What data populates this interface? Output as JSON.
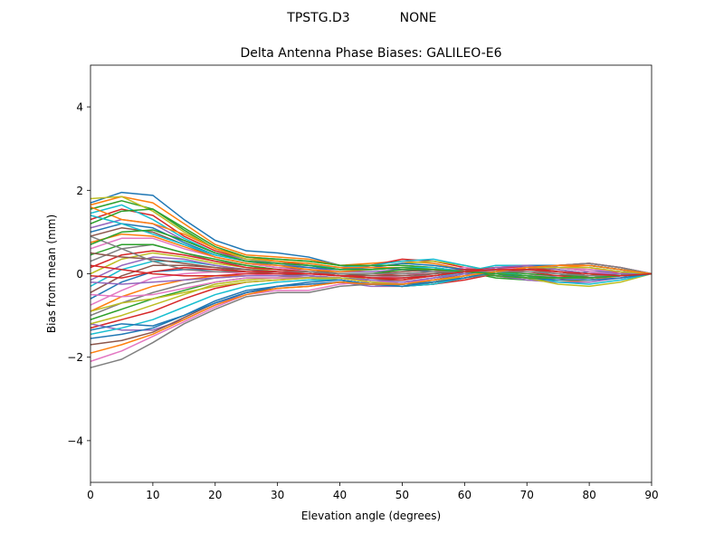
{
  "header": {
    "antenna": "TPSTG.D3",
    "radome": "NONE"
  },
  "chart_data": {
    "type": "line",
    "title": "Delta Antenna Phase Biases: GALILEO-E6",
    "xlabel": "Elevation angle (degrees)",
    "ylabel": "Bias from mean (mm)",
    "xlim": [
      0,
      90
    ],
    "ylim": [
      -5,
      5
    ],
    "xticks": [
      0,
      10,
      20,
      30,
      40,
      50,
      60,
      70,
      80,
      90
    ],
    "yticks": [
      -4,
      -2,
      0,
      2,
      4
    ],
    "xtick_labels": [
      "0",
      "10",
      "20",
      "30",
      "40",
      "50",
      "60",
      "70",
      "80",
      "90"
    ],
    "ytick_labels": [
      "−4",
      "−2",
      "0",
      "2",
      "4"
    ],
    "grid": false,
    "legend": "none",
    "colors": [
      "#1f77b4",
      "#ff7f0e",
      "#2ca02c",
      "#d62728",
      "#9467bd",
      "#8c564b",
      "#e377c2",
      "#7f7f7f",
      "#bcbd22",
      "#17becf"
    ],
    "x": [
      0,
      5,
      10,
      15,
      20,
      25,
      30,
      35,
      40,
      45,
      50,
      55,
      60,
      65,
      70,
      75,
      80,
      85,
      90
    ],
    "series": [
      {
        "values": [
          1.7,
          1.95,
          1.88,
          1.3,
          0.8,
          0.55,
          0.5,
          0.4,
          0.2,
          0.15,
          0.1,
          0.05,
          0.0,
          -0.05,
          -0.1,
          -0.05,
          0.05,
          0.05,
          0.0
        ]
      },
      {
        "values": [
          1.65,
          1.85,
          1.7,
          1.2,
          0.7,
          0.45,
          0.4,
          0.35,
          0.2,
          0.25,
          0.3,
          0.25,
          0.1,
          -0.05,
          -0.15,
          -0.2,
          -0.15,
          -0.05,
          0.0
        ]
      },
      {
        "values": [
          1.55,
          1.75,
          1.55,
          1.05,
          0.6,
          0.4,
          0.35,
          0.3,
          0.2,
          0.2,
          0.2,
          0.15,
          0.05,
          -0.1,
          -0.15,
          -0.15,
          -0.1,
          -0.05,
          0.0
        ]
      },
      {
        "values": [
          1.3,
          1.55,
          1.4,
          0.9,
          0.55,
          0.35,
          0.3,
          0.2,
          0.1,
          0.2,
          0.35,
          0.3,
          0.15,
          0.0,
          -0.1,
          -0.15,
          -0.05,
          0.05,
          0.0
        ]
      },
      {
        "values": [
          1.1,
          1.3,
          1.2,
          0.8,
          0.5,
          0.35,
          0.25,
          0.15,
          0.05,
          0.05,
          0.1,
          0.1,
          0.05,
          -0.05,
          -0.15,
          -0.2,
          -0.2,
          -0.1,
          0.0
        ]
      },
      {
        "values": [
          0.9,
          1.1,
          1.0,
          0.7,
          0.4,
          0.25,
          0.15,
          0.1,
          0.0,
          0.0,
          0.05,
          0.1,
          0.1,
          0.05,
          -0.05,
          -0.1,
          -0.1,
          -0.05,
          0.0
        ]
      },
      {
        "values": [
          0.6,
          0.85,
          0.85,
          0.6,
          0.4,
          0.25,
          0.15,
          0.05,
          -0.05,
          -0.1,
          -0.05,
          0.05,
          0.15,
          0.1,
          0.0,
          -0.1,
          -0.15,
          -0.1,
          0.0
        ]
      },
      {
        "values": [
          0.3,
          0.6,
          0.7,
          0.5,
          0.3,
          0.2,
          0.1,
          0.05,
          -0.05,
          -0.1,
          -0.1,
          0.0,
          0.1,
          0.15,
          0.1,
          0.0,
          -0.1,
          -0.05,
          0.0
        ]
      },
      {
        "values": [
          0.0,
          0.35,
          0.5,
          0.4,
          0.25,
          0.15,
          0.05,
          0.0,
          -0.05,
          -0.15,
          -0.15,
          -0.05,
          0.05,
          0.15,
          0.15,
          0.05,
          -0.05,
          -0.05,
          0.0
        ]
      },
      {
        "values": [
          -0.3,
          0.1,
          0.3,
          0.3,
          0.2,
          0.1,
          0.05,
          -0.05,
          -0.1,
          -0.15,
          -0.2,
          -0.1,
          0.05,
          0.2,
          0.2,
          0.1,
          0.0,
          -0.05,
          0.0
        ]
      },
      {
        "values": [
          -0.6,
          -0.2,
          0.05,
          0.1,
          0.1,
          0.05,
          0.0,
          -0.05,
          -0.1,
          -0.2,
          -0.25,
          -0.15,
          0.0,
          0.15,
          0.2,
          0.15,
          0.05,
          0.0,
          0.0
        ]
      },
      {
        "values": [
          -0.9,
          -0.55,
          -0.3,
          -0.15,
          -0.05,
          -0.05,
          -0.05,
          -0.1,
          -0.1,
          -0.2,
          -0.25,
          -0.2,
          -0.05,
          0.1,
          0.2,
          0.2,
          0.15,
          0.05,
          0.0
        ]
      },
      {
        "values": [
          -1.1,
          -0.85,
          -0.6,
          -0.4,
          -0.2,
          -0.1,
          -0.1,
          -0.1,
          -0.15,
          -0.25,
          -0.3,
          -0.25,
          -0.1,
          0.05,
          0.15,
          0.2,
          0.2,
          0.1,
          0.0
        ]
      },
      {
        "values": [
          -1.3,
          -1.1,
          -0.9,
          -0.6,
          -0.35,
          -0.2,
          -0.15,
          -0.1,
          -0.15,
          -0.25,
          -0.3,
          -0.25,
          -0.15,
          0.0,
          0.1,
          0.2,
          0.25,
          0.15,
          0.0
        ]
      },
      {
        "values": [
          -1.2,
          -1.35,
          -1.35,
          -1.1,
          -0.75,
          -0.45,
          -0.3,
          -0.25,
          -0.2,
          -0.3,
          -0.3,
          -0.2,
          -0.05,
          0.1,
          0.2,
          0.2,
          0.2,
          0.1,
          0.0
        ]
      },
      {
        "values": [
          -1.7,
          -1.6,
          -1.4,
          -1.05,
          -0.7,
          -0.45,
          -0.35,
          -0.3,
          -0.2,
          -0.25,
          -0.25,
          -0.2,
          -0.1,
          0.05,
          0.15,
          0.2,
          0.25,
          0.15,
          0.0
        ]
      },
      {
        "values": [
          -2.1,
          -1.85,
          -1.5,
          -1.15,
          -0.8,
          -0.5,
          -0.4,
          -0.4,
          -0.25,
          -0.2,
          -0.2,
          -0.15,
          -0.05,
          0.05,
          0.1,
          0.2,
          0.25,
          0.15,
          0.0
        ]
      },
      {
        "values": [
          -2.25,
          -2.05,
          -1.65,
          -1.2,
          -0.85,
          -0.55,
          -0.45,
          -0.45,
          -0.3,
          -0.25,
          -0.25,
          -0.2,
          -0.1,
          0.0,
          0.1,
          0.2,
          0.25,
          0.15,
          0.0
        ]
      },
      {
        "values": [
          1.8,
          1.85,
          1.5,
          1.0,
          0.6,
          0.35,
          0.3,
          0.25,
          0.15,
          0.15,
          0.25,
          0.3,
          0.2,
          0.05,
          -0.1,
          -0.25,
          -0.3,
          -0.2,
          0.0
        ]
      },
      {
        "values": [
          1.45,
          1.65,
          1.3,
          0.85,
          0.5,
          0.3,
          0.25,
          0.2,
          0.15,
          0.2,
          0.3,
          0.35,
          0.2,
          0.05,
          -0.05,
          -0.2,
          -0.25,
          -0.15,
          0.0
        ]
      },
      {
        "values": [
          1.0,
          1.2,
          1.1,
          0.75,
          0.45,
          0.3,
          0.2,
          0.15,
          0.1,
          0.15,
          0.25,
          0.2,
          0.1,
          0.0,
          -0.1,
          -0.15,
          -0.15,
          -0.1,
          0.0
        ]
      },
      {
        "values": [
          0.75,
          0.95,
          0.9,
          0.65,
          0.4,
          0.25,
          0.2,
          0.1,
          0.05,
          0.1,
          0.15,
          0.15,
          0.05,
          0.0,
          -0.05,
          -0.1,
          -0.1,
          -0.05,
          0.0
        ]
      },
      {
        "values": [
          0.45,
          0.7,
          0.7,
          0.5,
          0.35,
          0.2,
          0.1,
          0.05,
          0.0,
          0.0,
          0.1,
          0.1,
          0.05,
          0.05,
          0.0,
          -0.05,
          -0.05,
          -0.05,
          0.0
        ]
      },
      {
        "values": [
          0.15,
          0.45,
          0.55,
          0.45,
          0.3,
          0.15,
          0.1,
          0.05,
          -0.05,
          -0.05,
          0.0,
          0.05,
          0.1,
          0.1,
          0.05,
          -0.05,
          -0.1,
          -0.05,
          0.0
        ]
      },
      {
        "values": [
          -0.15,
          0.2,
          0.4,
          0.35,
          0.2,
          0.1,
          0.05,
          0.0,
          -0.05,
          -0.1,
          -0.1,
          -0.05,
          0.05,
          0.15,
          0.15,
          0.05,
          -0.05,
          -0.05,
          0.0
        ]
      },
      {
        "values": [
          -0.45,
          -0.05,
          0.2,
          0.2,
          0.15,
          0.05,
          0.0,
          -0.05,
          -0.1,
          -0.15,
          -0.15,
          -0.05,
          0.05,
          0.15,
          0.15,
          0.1,
          0.0,
          0.0,
          0.0
        ]
      },
      {
        "values": [
          -0.75,
          -0.4,
          -0.1,
          0.0,
          0.05,
          0.0,
          -0.05,
          -0.05,
          -0.1,
          -0.2,
          -0.2,
          -0.1,
          0.0,
          0.15,
          0.2,
          0.15,
          0.05,
          0.0,
          0.0
        ]
      },
      {
        "values": [
          -1.0,
          -0.7,
          -0.45,
          -0.25,
          -0.1,
          -0.05,
          -0.05,
          -0.1,
          -0.1,
          -0.2,
          -0.25,
          -0.15,
          -0.05,
          0.1,
          0.15,
          0.15,
          0.1,
          0.05,
          0.0
        ]
      },
      {
        "values": [
          -1.2,
          -1.0,
          -0.75,
          -0.5,
          -0.25,
          -0.15,
          -0.1,
          -0.1,
          -0.15,
          -0.25,
          -0.3,
          -0.2,
          -0.1,
          0.05,
          0.15,
          0.2,
          0.2,
          0.1,
          0.0
        ]
      },
      {
        "values": [
          -1.45,
          -1.3,
          -1.1,
          -0.8,
          -0.5,
          -0.3,
          -0.2,
          -0.15,
          -0.15,
          -0.25,
          -0.3,
          -0.25,
          -0.1,
          0.05,
          0.15,
          0.2,
          0.2,
          0.1,
          0.0
        ]
      },
      {
        "values": [
          -1.35,
          -1.2,
          -1.25,
          -1.0,
          -0.7,
          -0.45,
          -0.3,
          -0.2,
          -0.15,
          -0.25,
          -0.3,
          -0.2,
          -0.05,
          0.1,
          0.2,
          0.2,
          0.2,
          0.1,
          0.0
        ]
      },
      {
        "values": [
          1.6,
          1.3,
          1.2,
          0.95,
          0.6,
          0.4,
          0.3,
          0.25,
          0.15,
          0.15,
          0.15,
          0.1,
          0.05,
          -0.05,
          -0.1,
          -0.1,
          -0.05,
          0.0,
          0.0
        ]
      },
      {
        "values": [
          1.2,
          1.5,
          1.55,
          1.1,
          0.65,
          0.4,
          0.35,
          0.3,
          0.2,
          0.2,
          0.2,
          0.15,
          0.05,
          -0.05,
          -0.1,
          -0.1,
          -0.05,
          0.0,
          0.0
        ]
      },
      {
        "values": [
          0.2,
          0.1,
          0.0,
          -0.05,
          -0.05,
          0.0,
          0.0,
          0.0,
          -0.05,
          -0.1,
          -0.15,
          -0.05,
          0.05,
          0.15,
          0.15,
          0.05,
          -0.05,
          -0.05,
          0.0
        ]
      },
      {
        "values": [
          -0.2,
          -0.25,
          -0.2,
          -0.15,
          -0.1,
          -0.05,
          -0.05,
          -0.05,
          -0.1,
          -0.15,
          -0.2,
          -0.1,
          0.0,
          0.15,
          0.2,
          0.1,
          0.0,
          0.0,
          0.0
        ]
      },
      {
        "values": [
          0.5,
          0.4,
          0.35,
          0.25,
          0.15,
          0.1,
          0.05,
          0.05,
          0.0,
          -0.05,
          -0.05,
          0.0,
          0.05,
          0.1,
          0.1,
          0.05,
          -0.05,
          -0.05,
          0.0
        ]
      },
      {
        "values": [
          -0.5,
          -0.55,
          -0.5,
          -0.35,
          -0.2,
          -0.1,
          -0.1,
          -0.1,
          -0.1,
          -0.2,
          -0.25,
          -0.15,
          -0.05,
          0.1,
          0.15,
          0.15,
          0.1,
          0.05,
          0.0
        ]
      },
      {
        "values": [
          0.9,
          0.6,
          0.3,
          0.1,
          0.05,
          0.05,
          0.05,
          0.05,
          0.0,
          0.0,
          0.0,
          0.05,
          0.05,
          0.05,
          0.05,
          0.0,
          -0.05,
          -0.05,
          0.0
        ]
      },
      {
        "values": [
          -0.9,
          -0.7,
          -0.6,
          -0.45,
          -0.3,
          -0.2,
          -0.15,
          -0.1,
          -0.1,
          -0.2,
          -0.25,
          -0.2,
          -0.05,
          0.05,
          0.15,
          0.15,
          0.15,
          0.05,
          0.0
        ]
      },
      {
        "values": [
          1.4,
          1.2,
          0.95,
          0.7,
          0.45,
          0.3,
          0.25,
          0.2,
          0.1,
          0.1,
          0.15,
          0.15,
          0.05,
          0.0,
          -0.05,
          -0.1,
          -0.1,
          -0.05,
          0.0
        ]
      },
      {
        "values": [
          -1.55,
          -1.45,
          -1.3,
          -1.0,
          -0.65,
          -0.4,
          -0.3,
          -0.25,
          -0.2,
          -0.25,
          -0.25,
          -0.2,
          -0.1,
          0.05,
          0.15,
          0.2,
          0.2,
          0.1,
          0.0
        ]
      },
      {
        "values": [
          -1.9,
          -1.7,
          -1.45,
          -1.1,
          -0.75,
          -0.5,
          -0.35,
          -0.3,
          -0.2,
          -0.25,
          -0.25,
          -0.15,
          -0.05,
          0.05,
          0.15,
          0.2,
          0.2,
          0.1,
          0.0
        ]
      },
      {
        "values": [
          0.7,
          1.0,
          1.05,
          0.8,
          0.5,
          0.3,
          0.25,
          0.2,
          0.1,
          0.1,
          0.15,
          0.1,
          0.05,
          0.0,
          -0.05,
          -0.1,
          -0.1,
          -0.05,
          0.0
        ]
      },
      {
        "values": [
          -0.05,
          -0.1,
          0.05,
          0.15,
          0.1,
          0.05,
          0.05,
          0.0,
          -0.05,
          -0.1,
          -0.1,
          -0.05,
          0.05,
          0.1,
          0.1,
          0.05,
          0.0,
          -0.05,
          0.0
        ]
      }
    ]
  }
}
